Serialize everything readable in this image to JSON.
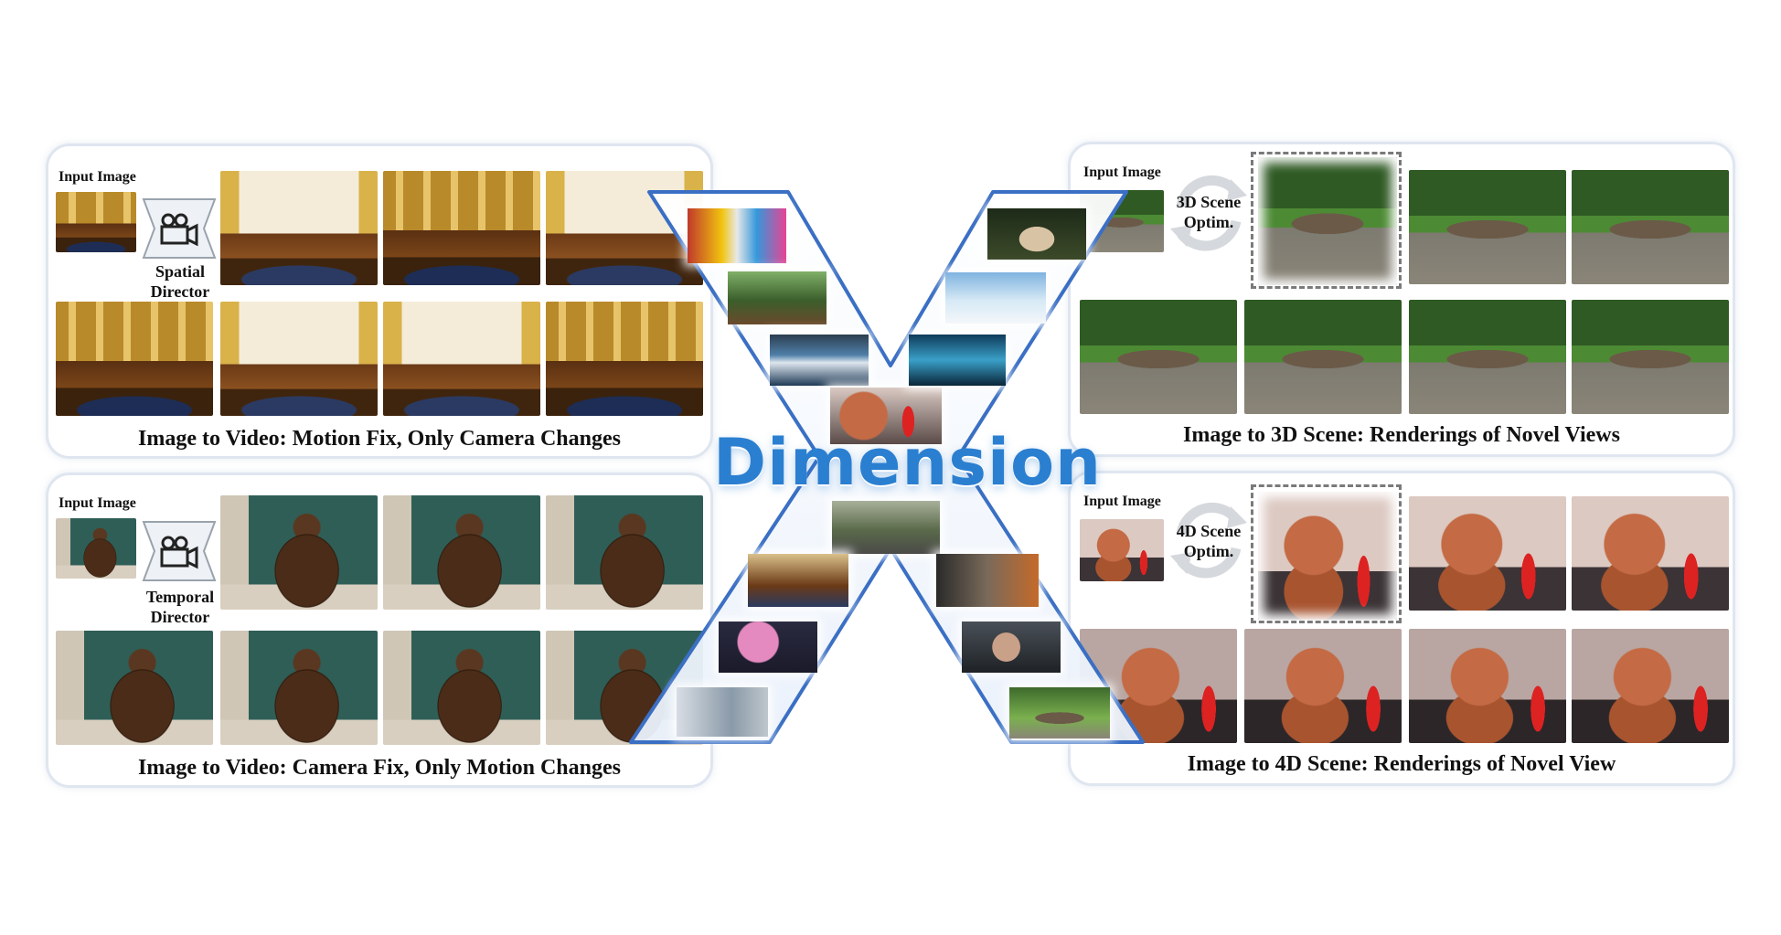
{
  "center": {
    "title": "Dimension"
  },
  "panels": {
    "top_left": {
      "caption": "Image to Video: Motion Fix, Only Camera Changes",
      "input_label": "Input Image",
      "director_line1": "Spatial",
      "director_line2": "Director",
      "icon": "video-camera-icon"
    },
    "bottom_left": {
      "caption": "Image to Video: Camera Fix, Only Motion Changes",
      "input_label": "Input Image",
      "director_line1": "Temporal",
      "director_line2": "Director",
      "icon": "video-camera-icon"
    },
    "top_right": {
      "caption": "Image to 3D Scene: Renderings of Novel Views",
      "input_label": "Input Image",
      "optim_line1": "3D Scene",
      "optim_line2": "Optim.",
      "icon": "refresh-cycle-icon"
    },
    "bottom_right": {
      "caption": "Image to 4D Scene: Renderings of Novel View",
      "input_label": "Input Image",
      "optim_line1": "4D Scene",
      "optim_line2": "Optim.",
      "icon": "refresh-cycle-icon"
    }
  },
  "colors": {
    "panel_border": "#dfe6f0",
    "x_stroke": "#3a6fc4",
    "title_blue": "#2b7fd0"
  }
}
